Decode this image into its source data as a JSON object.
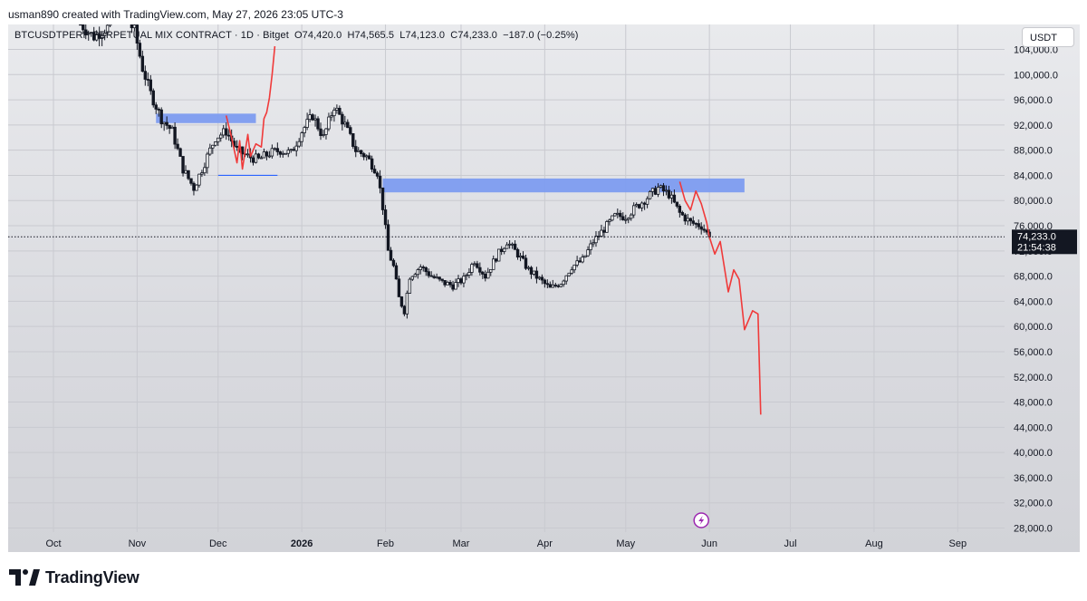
{
  "header": {
    "credit": "usman890 created with TradingView.com, May 27, 2026 23:05 UTC-3"
  },
  "symbol_bar": {
    "symbol": "BTCUSDTPERP PERPETUAL MIX CONTRACT · 1D · Bitget",
    "open": "O74,420.0",
    "high": "H74,565.5",
    "low": "L74,123.0",
    "close": "C74,233.0",
    "change": "−187.0 (−0.25%)"
  },
  "currency_button": "USDT",
  "price_label": {
    "value": "74,233.0",
    "countdown": "21:54:38",
    "price": 74233
  },
  "footer": {
    "brand": "TradingView"
  },
  "colors": {
    "up_candle": "#ffffff",
    "down_candle": "#131722",
    "wick": "#131722",
    "zone": "#7d9cf0",
    "projection": "#f03a3a",
    "support_line": "#2962ff",
    "price_tag": "#131722"
  },
  "chart_data": {
    "type": "candlestick",
    "x_ticks": [
      "Oct",
      "Nov",
      "Dec",
      "2026",
      "Feb",
      "Mar",
      "Apr",
      "May",
      "Jun",
      "Jul",
      "Aug",
      "Sep"
    ],
    "x_tick_days": [
      0,
      31,
      61,
      92,
      123,
      151,
      182,
      212,
      243,
      273,
      304,
      335
    ],
    "y_ticks": [
      "104,000.0",
      "100,000.0",
      "96,000.0",
      "92,000.0",
      "88,000.0",
      "84,000.0",
      "80,000.0",
      "76,000.0",
      "72,000.0",
      "68,000.0",
      "64,000.0",
      "60,000.0",
      "56,000.0",
      "52,000.0",
      "48,000.0",
      "44,000.0",
      "40,000.0",
      "36,000.0",
      "32,000.0",
      "28,000.0"
    ],
    "y_tick_values": [
      104000,
      100000,
      96000,
      92000,
      88000,
      84000,
      80000,
      76000,
      72000,
      68000,
      64000,
      60000,
      56000,
      52000,
      48000,
      44000,
      40000,
      36000,
      32000,
      28000
    ],
    "ylim": [
      26000,
      107500
    ],
    "close_series": [
      [
        10,
        108000
      ],
      [
        15,
        106000
      ],
      [
        20,
        107500
      ],
      [
        25,
        110000
      ],
      [
        30,
        107000
      ],
      [
        33,
        101000
      ],
      [
        36,
        97000
      ],
      [
        40,
        93000
      ],
      [
        44,
        91000
      ],
      [
        48,
        85000
      ],
      [
        52,
        82000
      ],
      [
        56,
        86000
      ],
      [
        60,
        90000
      ],
      [
        64,
        91000
      ],
      [
        68,
        88000
      ],
      [
        72,
        87000
      ],
      [
        76,
        86500
      ],
      [
        80,
        87500
      ],
      [
        84,
        88000
      ],
      [
        88,
        87500
      ],
      [
        92,
        91000
      ],
      [
        96,
        93500
      ],
      [
        100,
        90000
      ],
      [
        104,
        95000
      ],
      [
        108,
        92000
      ],
      [
        112,
        88000
      ],
      [
        116,
        87000
      ],
      [
        120,
        84500
      ],
      [
        122,
        79000
      ],
      [
        124,
        72000
      ],
      [
        126,
        69500
      ],
      [
        128,
        64500
      ],
      [
        130,
        62500
      ],
      [
        132,
        68000
      ],
      [
        136,
        69500
      ],
      [
        140,
        68000
      ],
      [
        144,
        67000
      ],
      [
        148,
        66500
      ],
      [
        152,
        67500
      ],
      [
        156,
        70500
      ],
      [
        160,
        68000
      ],
      [
        164,
        71000
      ],
      [
        168,
        73500
      ],
      [
        172,
        71500
      ],
      [
        176,
        69000
      ],
      [
        180,
        67500
      ],
      [
        184,
        66000
      ],
      [
        188,
        67000
      ],
      [
        192,
        69500
      ],
      [
        196,
        70500
      ],
      [
        200,
        73500
      ],
      [
        204,
        75500
      ],
      [
        208,
        77500
      ],
      [
        212,
        77500
      ],
      [
        216,
        79000
      ],
      [
        220,
        80500
      ],
      [
        224,
        82000
      ],
      [
        228,
        81000
      ],
      [
        232,
        78000
      ],
      [
        236,
        76500
      ],
      [
        240,
        76000
      ],
      [
        243,
        74233
      ]
    ],
    "zones": [
      {
        "day_start": 38,
        "day_end": 75,
        "low": 92300,
        "high": 93800
      },
      {
        "day_start": 122,
        "day_end": 256,
        "low": 81300,
        "high": 83500
      }
    ],
    "support_line": {
      "day_start": 61,
      "day_end": 83,
      "price": 84000
    },
    "projection_path_1": [
      [
        80,
        96300
      ],
      [
        81,
        100000
      ],
      [
        82,
        104500
      ]
    ],
    "projection_path_2": [
      [
        243,
        74233
      ],
      [
        245,
        71500
      ],
      [
        247,
        73500
      ],
      [
        250,
        65500
      ],
      [
        252,
        69000
      ],
      [
        254,
        67500
      ],
      [
        256,
        59500
      ],
      [
        259,
        62500
      ],
      [
        261,
        62000
      ],
      [
        262,
        46000
      ]
    ]
  }
}
